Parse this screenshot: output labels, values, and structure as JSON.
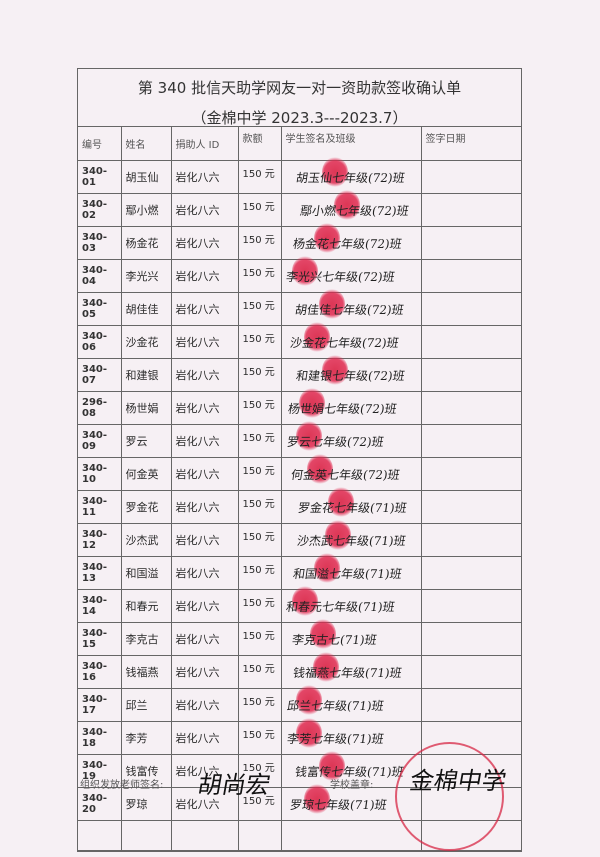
{
  "document": {
    "title": "第 340 批信天助学网友一对一资助款签收确认单",
    "subtitle": "（金棉中学 2023.3---2023.7）",
    "headers": [
      "编号",
      "姓名",
      "捐助人 ID",
      "款额",
      "学生签名及班级",
      "签字日期"
    ],
    "rows": [
      {
        "code": "340-01",
        "name": "胡玉仙",
        "donor": "岩化八六",
        "amount": "150 元",
        "signature": "胡玉仙七年级(72)班",
        "date": ""
      },
      {
        "code": "340-02",
        "name": "鄢小燃",
        "donor": "岩化八六",
        "amount": "150 元",
        "signature": "鄢小燃七年级(72)班",
        "date": ""
      },
      {
        "code": "340-03",
        "name": "杨金花",
        "donor": "岩化八六",
        "amount": "150 元",
        "signature": "杨金花七年级(72)班",
        "date": ""
      },
      {
        "code": "340-04",
        "name": "李光兴",
        "donor": "岩化八六",
        "amount": "150 元",
        "signature": "李光兴七年级(72)班",
        "date": ""
      },
      {
        "code": "340-05",
        "name": "胡佳佳",
        "donor": "岩化八六",
        "amount": "150 元",
        "signature": "胡佳佳七年级(72)班",
        "date": ""
      },
      {
        "code": "340-06",
        "name": "沙金花",
        "donor": "岩化八六",
        "amount": "150 元",
        "signature": "沙金花七年级(72)班",
        "date": ""
      },
      {
        "code": "340-07",
        "name": "和建银",
        "donor": "岩化八六",
        "amount": "150 元",
        "signature": "和建银七年级(72)班",
        "date": ""
      },
      {
        "code": "296-08",
        "name": "杨世娟",
        "donor": "岩化八六",
        "amount": "150 元",
        "signature": "杨世娟七年级(72)班",
        "date": ""
      },
      {
        "code": "340-09",
        "name": "罗云",
        "donor": "岩化八六",
        "amount": "150 元",
        "signature": "罗云七年级(72)班",
        "date": ""
      },
      {
        "code": "340-10",
        "name": "何金英",
        "donor": "岩化八六",
        "amount": "150 元",
        "signature": "何金英七年级(72)班",
        "date": ""
      },
      {
        "code": "340-11",
        "name": "罗金花",
        "donor": "岩化八六",
        "amount": "150 元",
        "signature": "罗金花七年级(71)班",
        "date": ""
      },
      {
        "code": "340-12",
        "name": "沙杰武",
        "donor": "岩化八六",
        "amount": "150 元",
        "signature": "沙杰武七年级(71)班",
        "date": ""
      },
      {
        "code": "340-13",
        "name": "和国溢",
        "donor": "岩化八六",
        "amount": "150 元",
        "signature": "和国溢七年级(71)班",
        "date": ""
      },
      {
        "code": "340-14",
        "name": "和春元",
        "donor": "岩化八六",
        "amount": "150 元",
        "signature": "和春元七年级(71)班",
        "date": ""
      },
      {
        "code": "340-15",
        "name": "李克古",
        "donor": "岩化八六",
        "amount": "150 元",
        "signature": "李克古七(71)班",
        "date": ""
      },
      {
        "code": "340-16",
        "name": "钱福燕",
        "donor": "岩化八六",
        "amount": "150 元",
        "signature": "钱福燕七年级(71)班",
        "date": ""
      },
      {
        "code": "340-17",
        "name": "邱兰",
        "donor": "岩化八六",
        "amount": "150 元",
        "signature": "邱兰七年级(71)班",
        "date": ""
      },
      {
        "code": "340-18",
        "name": "李芳",
        "donor": "岩化八六",
        "amount": "150 元",
        "signature": "李芳七年级(71)班",
        "date": ""
      },
      {
        "code": "340-19",
        "name": "钱富传",
        "donor": "岩化八六",
        "amount": "150 元",
        "signature": "钱富传七年级(71)班",
        "date": ""
      },
      {
        "code": "340-20",
        "name": "罗琼",
        "donor": "岩化八六",
        "amount": "150 元",
        "signature": "罗琼七年级(71)班",
        "date": ""
      }
    ]
  },
  "footer": {
    "teacher_label": "组织发放老师签名:",
    "teacher_signature": "胡尚宏",
    "stamp_label": "学校盖章:",
    "stamp_signature": "金棉中学"
  },
  "colors": {
    "ink_red": "#d8163a",
    "paper": "#f6f0f4"
  }
}
